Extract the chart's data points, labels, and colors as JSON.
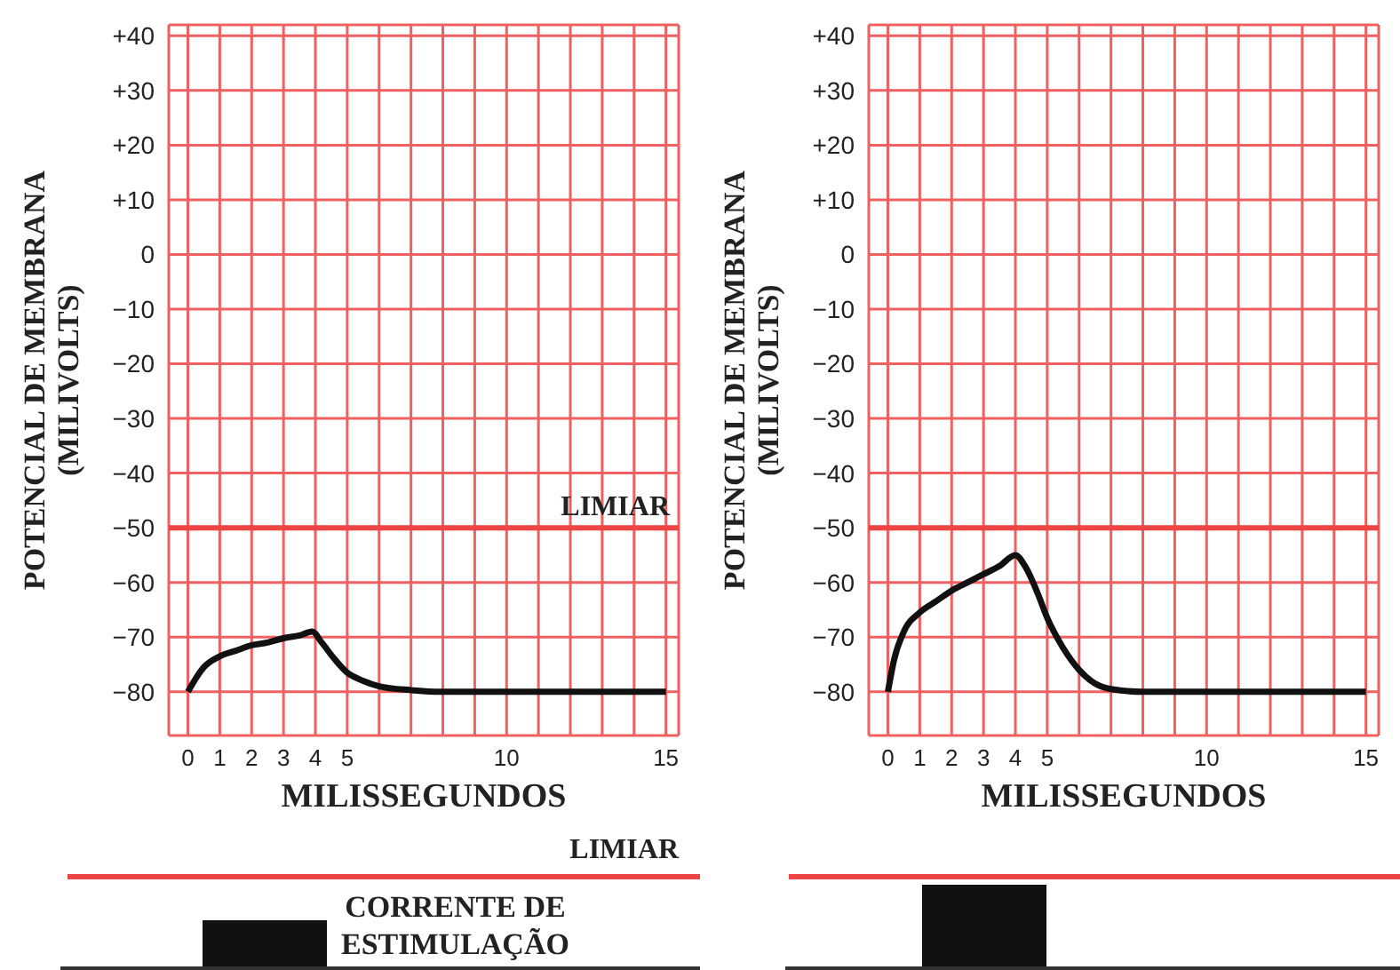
{
  "chart_data": [
    {
      "type": "line",
      "ylabel": "POTENCIAL DE MEMBRANA\n(MILIVOLTS)",
      "xlabel": "MILISSEGUNDOS",
      "xlim": [
        -0.6,
        15.4
      ],
      "ylim": [
        -88,
        42
      ],
      "xticks": [
        0,
        1,
        2,
        3,
        4,
        5,
        {
          "value": 6,
          "label": null
        },
        {
          "value": 7,
          "label": null
        },
        {
          "value": 8,
          "label": null
        },
        {
          "value": 9,
          "label": null
        },
        10,
        {
          "value": 11,
          "label": null
        },
        {
          "value": 12,
          "label": null
        },
        {
          "value": 13,
          "label": null
        },
        {
          "value": 14,
          "label": null
        },
        15
      ],
      "yticks": [
        {
          "value": 40,
          "label": "+40"
        },
        {
          "value": 30,
          "label": "+30"
        },
        {
          "value": 20,
          "label": "+20"
        },
        {
          "value": 10,
          "label": "+10"
        },
        0,
        {
          "value": -10,
          "label": "−10"
        },
        {
          "value": -20,
          "label": "−20"
        },
        {
          "value": -30,
          "label": "−30"
        },
        {
          "value": -40,
          "label": "−40"
        },
        {
          "value": -50,
          "label": "−50"
        },
        {
          "value": -60,
          "label": "−60"
        },
        {
          "value": -70,
          "label": "−70"
        },
        {
          "value": -80,
          "label": "−80"
        }
      ],
      "grid": true,
      "series": [
        {
          "color": "#111111",
          "x": [
            0,
            0.5,
            1,
            1.5,
            2,
            2.5,
            3,
            3.5,
            3.9,
            4.2,
            4.6,
            5,
            5.5,
            6,
            7,
            8,
            15
          ],
          "values": [
            -80,
            -75.5,
            -73.5,
            -72.5,
            -71.5,
            -71,
            -70.2,
            -69.7,
            -69,
            -71,
            -74,
            -76.5,
            -78,
            -79,
            -79.7,
            -80,
            -80
          ]
        }
      ],
      "ref_lines": [
        {
          "axis": "y",
          "value": -50,
          "label": "LIMIAR",
          "color": "#ee4444"
        }
      ]
    },
    {
      "type": "other",
      "annotations": [
        "LIMIAR",
        "CORRENTE DE\nESTIMULAÇÃO"
      ]
    },
    {
      "type": "line",
      "ylabel": "POTENCIAL DE MEMBRANA\n(MILIVOLTS)",
      "xlabel": "MILISSEGUNDOS",
      "xlim": [
        -0.6,
        15.4
      ],
      "ylim": [
        -88,
        42
      ],
      "xticks": [
        0,
        1,
        2,
        3,
        4,
        5,
        {
          "value": 6,
          "label": null
        },
        {
          "value": 7,
          "label": null
        },
        {
          "value": 8,
          "label": null
        },
        {
          "value": 9,
          "label": null
        },
        10,
        {
          "value": 11,
          "label": null
        },
        {
          "value": 12,
          "label": null
        },
        {
          "value": 13,
          "label": null
        },
        {
          "value": 14,
          "label": null
        },
        15
      ],
      "yticks": [
        {
          "value": 40,
          "label": "+40"
        },
        {
          "value": 30,
          "label": "+30"
        },
        {
          "value": 20,
          "label": "+20"
        },
        {
          "value": 10,
          "label": "+10"
        },
        0,
        {
          "value": -10,
          "label": "−10"
        },
        {
          "value": -20,
          "label": "−20"
        },
        {
          "value": -30,
          "label": "−30"
        },
        {
          "value": -40,
          "label": "−40"
        },
        {
          "value": -50,
          "label": "−50"
        },
        {
          "value": -60,
          "label": "−60"
        },
        {
          "value": -70,
          "label": "−70"
        },
        {
          "value": -80,
          "label": "−80"
        }
      ],
      "grid": true,
      "series": [
        {
          "color": "#111111",
          "x": [
            0,
            0.2,
            0.5,
            1,
            1.5,
            2,
            2.5,
            3,
            3.5,
            4,
            4.3,
            4.7,
            5,
            5.5,
            6,
            6.5,
            7,
            8,
            15
          ],
          "values": [
            -80,
            -74,
            -69,
            -65.5,
            -63.5,
            -61.5,
            -60,
            -58.5,
            -57,
            -55,
            -57,
            -62,
            -66.5,
            -72,
            -76,
            -78.5,
            -79.5,
            -80,
            -80
          ]
        }
      ],
      "ref_lines": [
        {
          "axis": "y",
          "value": -50,
          "color": "#ee4444"
        }
      ]
    },
    {
      "type": "other"
    }
  ]
}
